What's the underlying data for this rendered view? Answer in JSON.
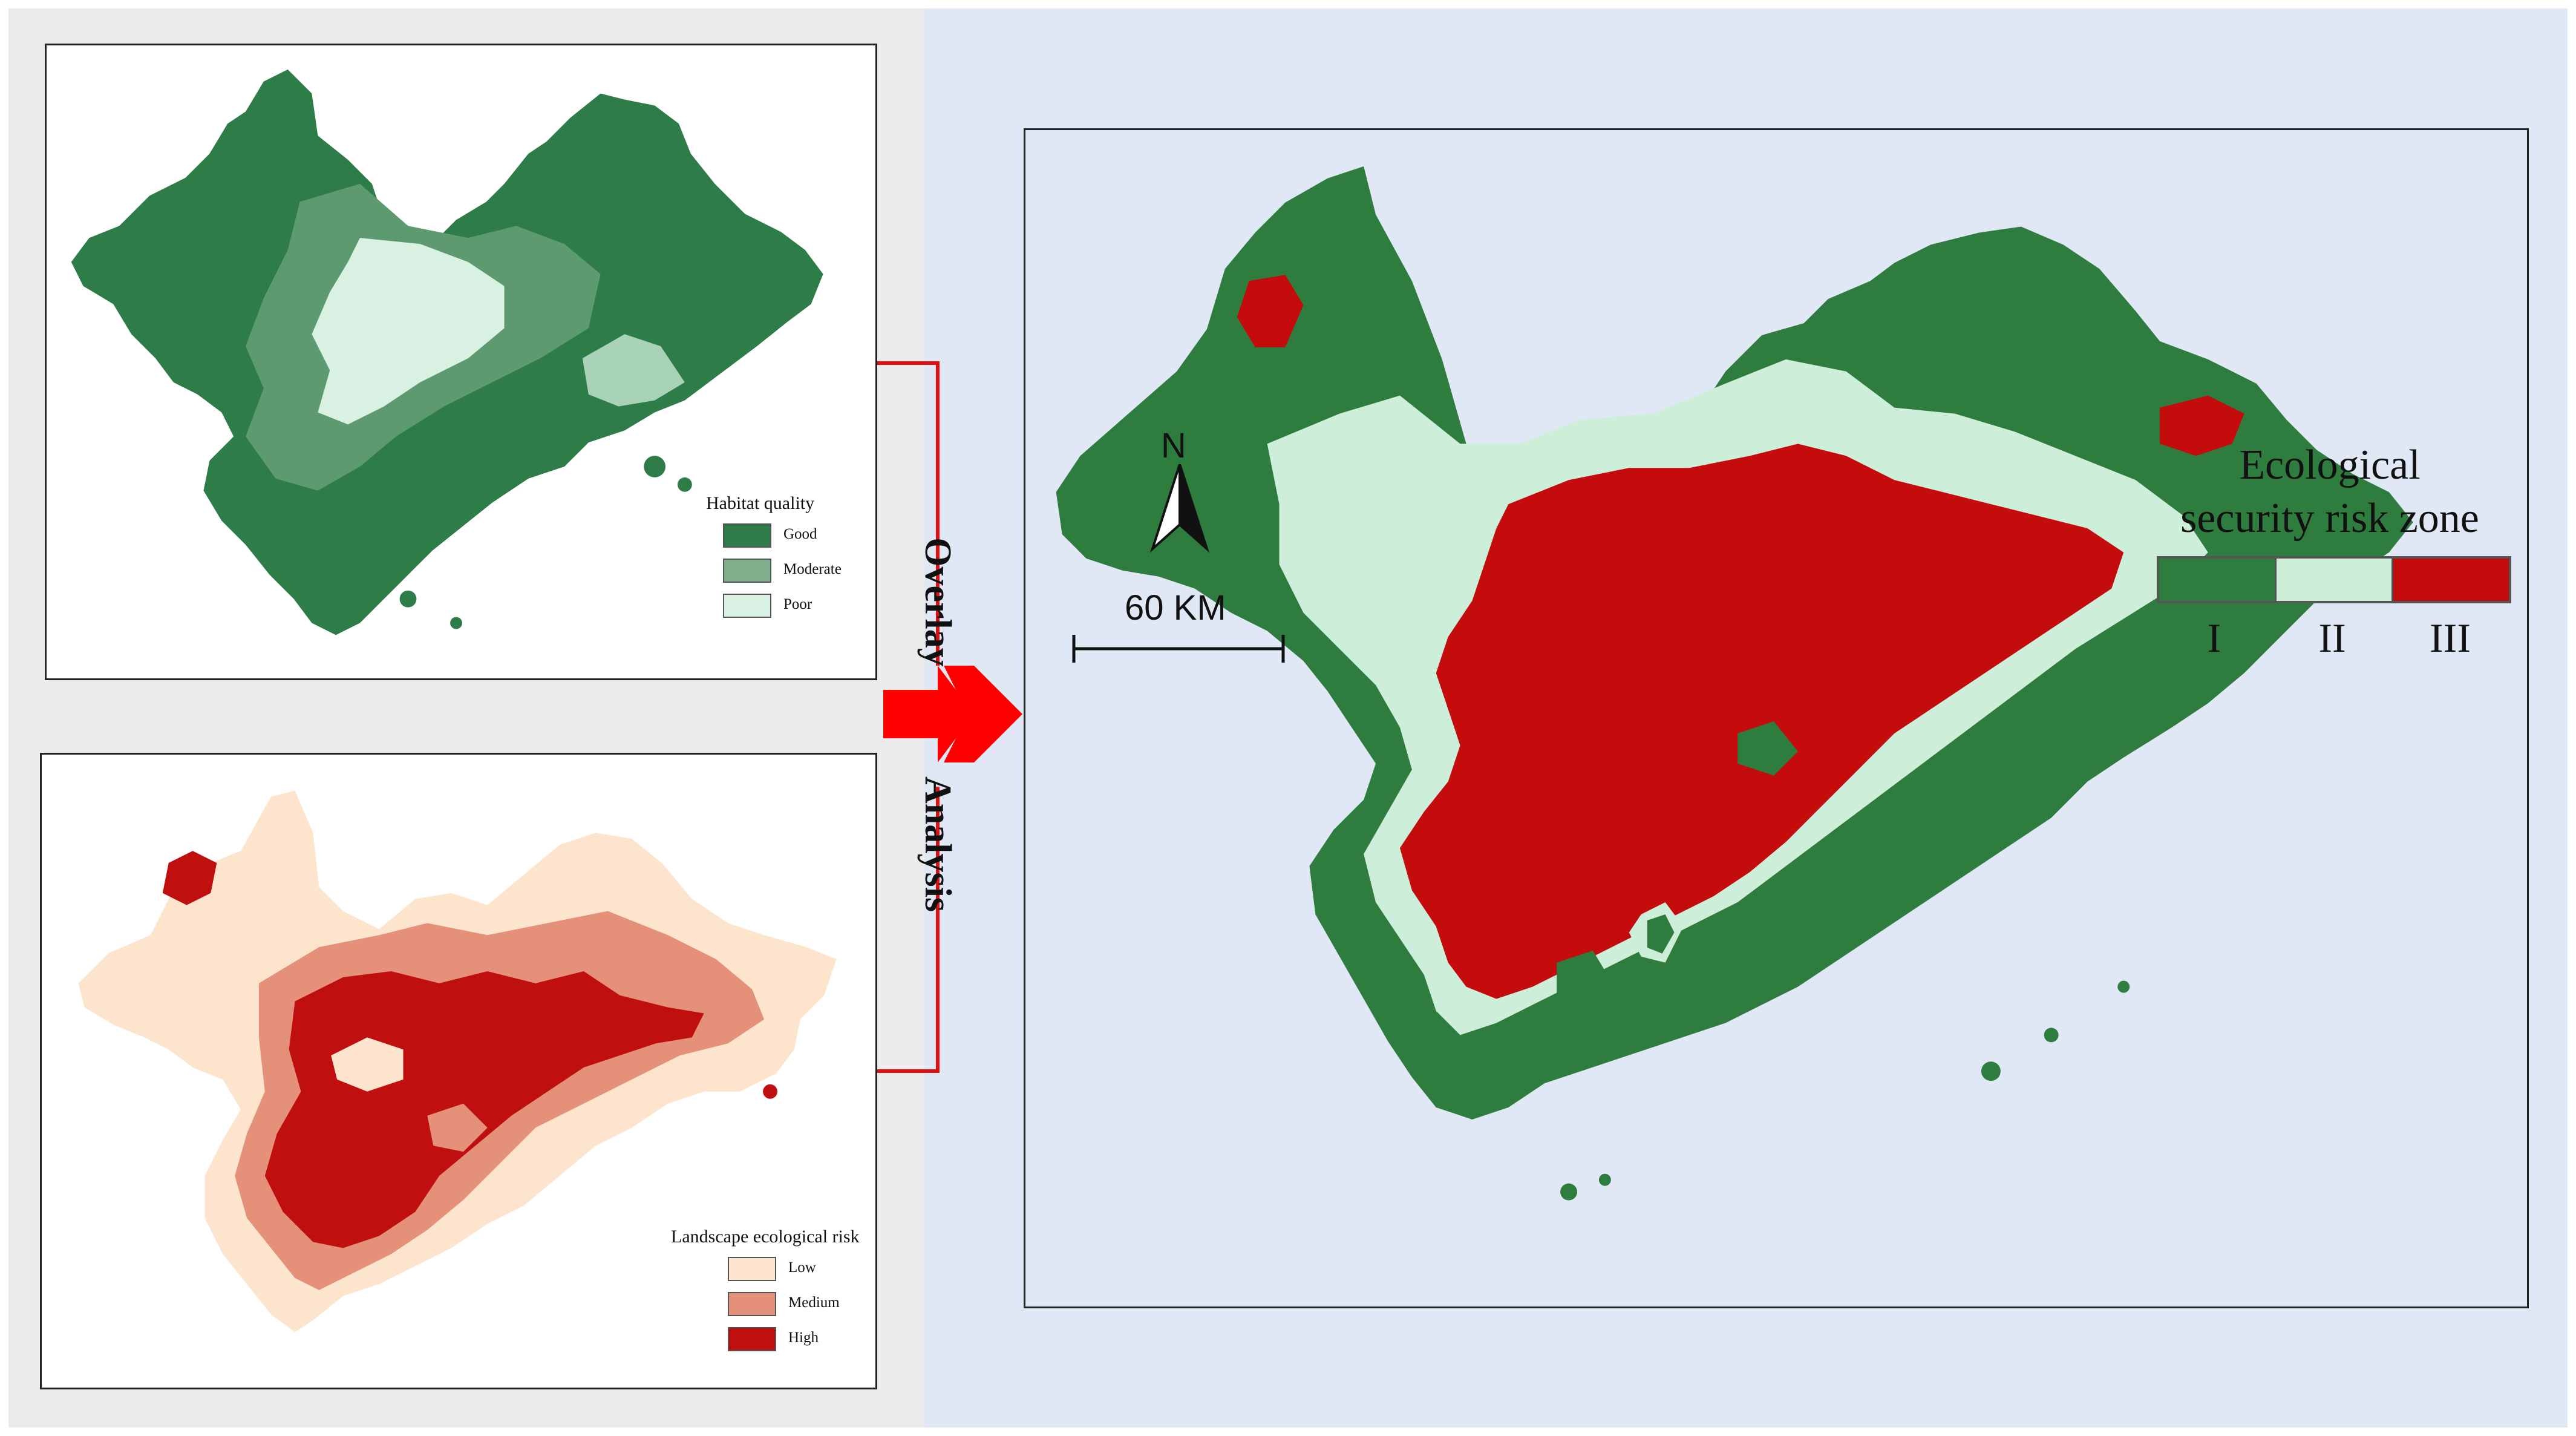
{
  "habitat_panel": {
    "legend_title": "Habitat quality",
    "items": [
      {
        "label": "Good",
        "color": "#2e7d49"
      },
      {
        "label": "Moderate",
        "color": "#7fae8c"
      },
      {
        "label": "Poor",
        "color": "#d9f1e3"
      }
    ]
  },
  "risk_panel": {
    "legend_title": "Landscape ecological risk",
    "items": [
      {
        "label": "Low",
        "color": "#fde4cc"
      },
      {
        "label": "Medium",
        "color": "#e5917a"
      },
      {
        "label": "High",
        "color": "#c00f0f"
      }
    ]
  },
  "connector": {
    "text_top": "Overlay",
    "text_bottom": "Analysis",
    "color": "#e01010"
  },
  "main_map": {
    "legend_title_line1": "Ecological",
    "legend_title_line2": "security risk zone",
    "zones": [
      {
        "label": "I",
        "color": "#2e7d3f"
      },
      {
        "label": "II",
        "color": "#cdeed8"
      },
      {
        "label": "III",
        "color": "#c40c0c"
      }
    ],
    "north_label": "N",
    "scale_label": "60 KM"
  }
}
